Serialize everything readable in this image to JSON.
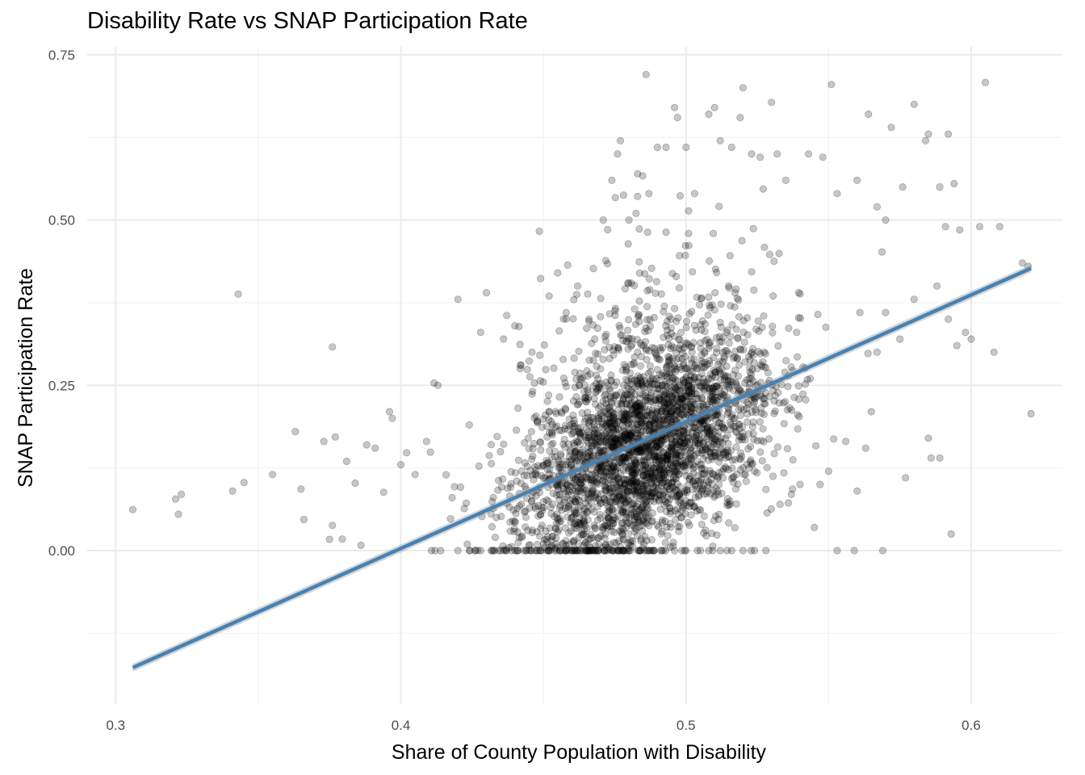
{
  "chart_data": {
    "type": "scatter",
    "title": "Disability Rate vs SNAP Participation Rate",
    "xlabel": "Share of County Population with Disability",
    "ylabel": "SNAP Participation Rate",
    "xlim": [
      0.29,
      0.632
    ],
    "ylim": [
      -0.232,
      0.762
    ],
    "x_ticks": [
      0.3,
      0.4,
      0.5,
      0.6
    ],
    "x_tick_labels": [
      "0.3",
      "0.4",
      "0.5",
      "0.6"
    ],
    "y_ticks": [
      0.0,
      0.25,
      0.5,
      0.75
    ],
    "y_tick_labels": [
      "0.00",
      "0.25",
      "0.50",
      "0.75"
    ],
    "grid": true,
    "point_color": "#000000",
    "point_opacity": 0.22,
    "trend_line": {
      "type": "linear",
      "color": "#4682b4",
      "x": [
        0.306,
        0.621
      ],
      "y": [
        -0.177,
        0.427
      ]
    },
    "cluster": {
      "center_x": 0.485,
      "center_y": 0.15,
      "sd_x": 0.022,
      "sd_y": 0.075,
      "n_points": 3100
    },
    "points": [
      [
        0.306,
        0.062
      ],
      [
        0.321,
        0.078
      ],
      [
        0.323,
        0.085
      ],
      [
        0.322,
        0.055
      ],
      [
        0.341,
        0.09
      ],
      [
        0.343,
        0.388
      ],
      [
        0.345,
        0.103
      ],
      [
        0.355,
        0.115
      ],
      [
        0.363,
        0.18
      ],
      [
        0.365,
        0.093
      ],
      [
        0.366,
        0.047
      ],
      [
        0.373,
        0.165
      ],
      [
        0.375,
        0.017
      ],
      [
        0.376,
        0.038
      ],
      [
        0.376,
        0.308
      ],
      [
        0.377,
        0.172
      ],
      [
        0.381,
        0.135
      ],
      [
        0.384,
        0.102
      ],
      [
        0.386,
        0.008
      ],
      [
        0.388,
        0.16
      ],
      [
        0.391,
        0.155
      ],
      [
        0.394,
        0.088
      ],
      [
        0.396,
        0.21
      ],
      [
        0.397,
        0.2
      ],
      [
        0.4,
        0.13
      ],
      [
        0.402,
        0.148
      ],
      [
        0.405,
        0.115
      ],
      [
        0.409,
        0.165
      ],
      [
        0.413,
        0.25
      ],
      [
        0.418,
        0.08
      ],
      [
        0.42,
        0.38
      ],
      [
        0.424,
        0.19
      ],
      [
        0.428,
        0.33
      ],
      [
        0.43,
        0.39
      ],
      [
        0.436,
        0.32
      ],
      [
        0.44,
        0.34
      ],
      [
        0.442,
        0.28
      ],
      [
        0.446,
        0.3
      ],
      [
        0.452,
        0.385
      ],
      [
        0.455,
        0.42
      ],
      [
        0.458,
        0.36
      ],
      [
        0.462,
        0.4
      ],
      [
        0.466,
        0.35
      ],
      [
        0.468,
        0.32
      ],
      [
        0.471,
        0.5
      ],
      [
        0.474,
        0.56
      ],
      [
        0.476,
        0.6
      ],
      [
        0.477,
        0.62
      ],
      [
        0.48,
        0.5
      ],
      [
        0.483,
        0.57
      ],
      [
        0.486,
        0.72
      ],
      [
        0.487,
        0.54
      ],
      [
        0.49,
        0.61
      ],
      [
        0.493,
        0.61
      ],
      [
        0.496,
        0.67
      ],
      [
        0.497,
        0.655
      ],
      [
        0.5,
        0.61
      ],
      [
        0.503,
        0.54
      ],
      [
        0.508,
        0.66
      ],
      [
        0.51,
        0.67
      ],
      [
        0.512,
        0.62
      ],
      [
        0.516,
        0.61
      ],
      [
        0.519,
        0.655
      ],
      [
        0.52,
        0.7
      ],
      [
        0.523,
        0.6
      ],
      [
        0.526,
        0.595
      ],
      [
        0.53,
        0.678
      ],
      [
        0.532,
        0.6
      ],
      [
        0.535,
        0.56
      ],
      [
        0.543,
        0.6
      ],
      [
        0.548,
        0.595
      ],
      [
        0.551,
        0.705
      ],
      [
        0.553,
        0.54
      ],
      [
        0.56,
        0.56
      ],
      [
        0.564,
        0.66
      ],
      [
        0.567,
        0.52
      ],
      [
        0.57,
        0.5
      ],
      [
        0.572,
        0.64
      ],
      [
        0.576,
        0.55
      ],
      [
        0.58,
        0.675
      ],
      [
        0.584,
        0.62
      ],
      [
        0.585,
        0.63
      ],
      [
        0.589,
        0.55
      ],
      [
        0.591,
        0.49
      ],
      [
        0.592,
        0.63
      ],
      [
        0.594,
        0.555
      ],
      [
        0.596,
        0.485
      ],
      [
        0.603,
        0.49
      ],
      [
        0.605,
        0.708
      ],
      [
        0.608,
        0.3
      ],
      [
        0.61,
        0.49
      ],
      [
        0.618,
        0.435
      ],
      [
        0.62,
        0.43
      ],
      [
        0.621,
        0.207
      ],
      [
        0.6,
        0.32
      ],
      [
        0.598,
        0.33
      ],
      [
        0.595,
        0.31
      ],
      [
        0.592,
        0.35
      ],
      [
        0.585,
        0.17
      ],
      [
        0.586,
        0.14
      ],
      [
        0.589,
        0.14
      ],
      [
        0.593,
        0.025
      ],
      [
        0.588,
        0.4
      ],
      [
        0.58,
        0.38
      ],
      [
        0.577,
        0.11
      ],
      [
        0.575,
        0.32
      ],
      [
        0.57,
        0.36
      ],
      [
        0.567,
        0.3
      ],
      [
        0.561,
        0.36
      ],
      [
        0.565,
        0.21
      ],
      [
        0.563,
        0.155
      ],
      [
        0.56,
        0.09
      ],
      [
        0.556,
        0.165
      ],
      [
        0.553,
        0.0
      ],
      [
        0.559,
        0.0
      ],
      [
        0.569,
        0.0
      ],
      [
        0.55,
        0.12
      ],
      [
        0.547,
        0.1
      ],
      [
        0.545,
        0.035
      ],
      [
        0.54,
        0.1
      ],
      [
        0.537,
        0.085
      ],
      [
        0.533,
        0.07
      ],
      [
        0.42,
        0.0
      ],
      [
        0.424,
        0.0
      ],
      [
        0.428,
        0.0
      ],
      [
        0.432,
        0.0
      ],
      [
        0.436,
        0.0
      ],
      [
        0.44,
        0.0
      ],
      [
        0.444,
        0.0
      ],
      [
        0.448,
        0.0
      ],
      [
        0.452,
        0.0
      ],
      [
        0.456,
        0.0
      ],
      [
        0.46,
        0.0
      ],
      [
        0.464,
        0.0
      ],
      [
        0.468,
        0.0
      ],
      [
        0.472,
        0.0
      ],
      [
        0.476,
        0.0
      ],
      [
        0.48,
        0.0
      ],
      [
        0.484,
        0.0
      ],
      [
        0.488,
        0.0
      ],
      [
        0.492,
        0.0
      ],
      [
        0.496,
        0.0
      ],
      [
        0.5,
        0.0
      ],
      [
        0.504,
        0.0
      ],
      [
        0.508,
        0.0
      ],
      [
        0.512,
        0.0
      ],
      [
        0.516,
        0.0
      ],
      [
        0.52,
        0.0
      ],
      [
        0.524,
        0.0
      ],
      [
        0.528,
        0.0
      ]
    ]
  }
}
